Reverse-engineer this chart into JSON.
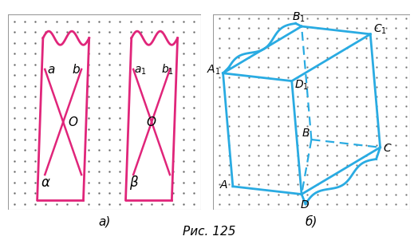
{
  "fig_width": 5.24,
  "fig_height": 3.06,
  "dpi": 100,
  "bg_color": "#ffffff",
  "pink": "#e0257a",
  "cyan": "#29abe2",
  "dot_dark": "#444444",
  "caption": "Рис. 125",
  "label_a": "а)",
  "label_b": "б)"
}
